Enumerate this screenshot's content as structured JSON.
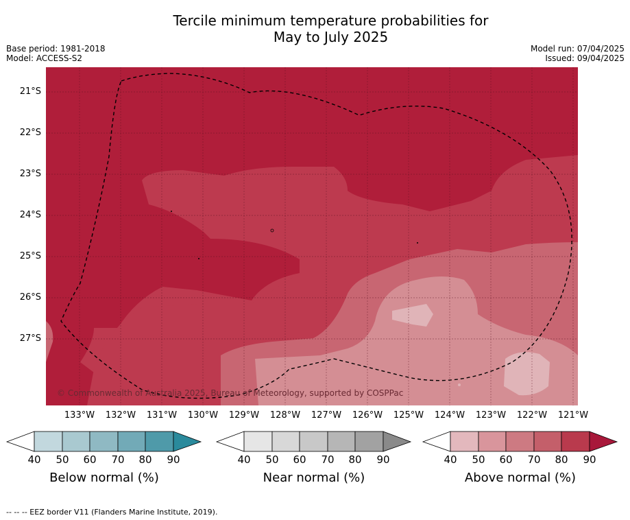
{
  "header": {
    "title_line1": "Tercile minimum temperature probabilities for",
    "title_line2": "May to July 2025",
    "base_period": "Base period: 1981-2018",
    "model": "Model: ACCESS-S2",
    "model_run": "Model run: 07/04/2025",
    "issued": "Issued: 09/04/2025"
  },
  "map": {
    "latitude_labels": [
      "21°S",
      "22°S",
      "23°S",
      "24°S",
      "25°S",
      "26°S",
      "27°S"
    ],
    "longitude_labels": [
      "133°W",
      "132°W",
      "131°W",
      "130°W",
      "129°W",
      "128°W",
      "127°W",
      "126°W",
      "125°W",
      "124°W",
      "123°W",
      "122°W",
      "121°W"
    ],
    "copyright": "© Commonwealth of Australia 2025, Bureau of Meteorology, supported by COSPPac",
    "colors": {
      "above_90": "#b01e3a",
      "above_80": "#bd3a4f",
      "above_70": "#c86672",
      "above_60": "#d48e94",
      "above_50": "#e0b4b8"
    }
  },
  "colorbars": [
    {
      "label": "Below normal (%)",
      "ticks": [
        "40",
        "50",
        "60",
        "70",
        "80",
        "90"
      ],
      "colors": [
        "#c2d8de",
        "#a9c9d0",
        "#8fb9c3",
        "#72aab7",
        "#4f9aa9",
        "#2a8a9c"
      ]
    },
    {
      "label": "Near normal (%)",
      "ticks": [
        "40",
        "50",
        "60",
        "70",
        "80",
        "90"
      ],
      "colors": [
        "#e6e6e6",
        "#d8d8d8",
        "#c8c8c8",
        "#b6b6b6",
        "#a2a2a2",
        "#8a8a8a"
      ]
    },
    {
      "label": "Above normal (%)",
      "ticks": [
        "40",
        "50",
        "60",
        "70",
        "80",
        "90"
      ],
      "colors": [
        "#e3b8bd",
        "#d9959c",
        "#cd7a82",
        "#c45f6a",
        "#b93a4d",
        "#a8183a"
      ]
    }
  ],
  "footer": {
    "eez_legend": "--  --  -- EEZ border V11 (Flanders Marine Institute, 2019)."
  }
}
